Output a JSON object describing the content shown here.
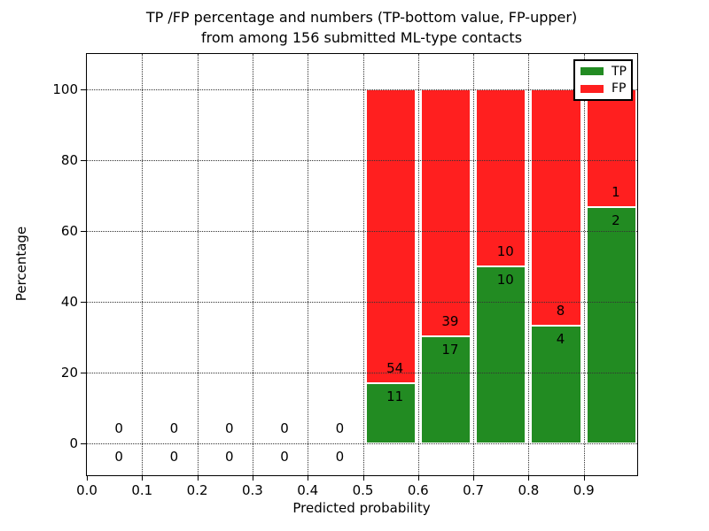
{
  "chart_data": {
    "type": "bar",
    "stacked": true,
    "title_line1": "TP /FP percentage and numbers (TP-bottom value, FP-upper)",
    "title_line2": "from among 156 submitted ML-type contacts",
    "xlabel": "Predicted probability",
    "ylabel": "Percentage",
    "xlim": [
      0.0,
      1.0
    ],
    "ylim": [
      -9,
      110
    ],
    "grid": "dotted",
    "legend_position": "upper right",
    "xticks": [
      "0.0",
      "0.1",
      "0.2",
      "0.3",
      "0.4",
      "0.5",
      "0.6",
      "0.7",
      "0.8",
      "0.9"
    ],
    "yticks": [
      "0",
      "20",
      "40",
      "60",
      "80",
      "100"
    ],
    "legend": [
      {
        "label": "TP",
        "color": "#228b22"
      },
      {
        "label": "FP",
        "color": "#ff1f1f"
      }
    ],
    "bins": [
      {
        "x0": 0.0,
        "x1": 0.1,
        "tp": 0,
        "fp": 0
      },
      {
        "x0": 0.1,
        "x1": 0.2,
        "tp": 0,
        "fp": 0
      },
      {
        "x0": 0.2,
        "x1": 0.3,
        "tp": 0,
        "fp": 0
      },
      {
        "x0": 0.3,
        "x1": 0.4,
        "tp": 0,
        "fp": 0
      },
      {
        "x0": 0.4,
        "x1": 0.5,
        "tp": 0,
        "fp": 0
      },
      {
        "x0": 0.5,
        "x1": 0.6,
        "tp": 11,
        "fp": 54
      },
      {
        "x0": 0.6,
        "x1": 0.7,
        "tp": 17,
        "fp": 39
      },
      {
        "x0": 0.7,
        "x1": 0.8,
        "tp": 10,
        "fp": 10
      },
      {
        "x0": 0.8,
        "x1": 0.9,
        "tp": 4,
        "fp": 8
      },
      {
        "x0": 0.9,
        "x1": 1.0,
        "tp": 2,
        "fp": 1
      }
    ]
  },
  "colors": {
    "tp": "#228b22",
    "fp": "#ff1f1f",
    "background": "#ffffff",
    "axes": "#000000",
    "grid_line": "#333333",
    "text": "#000000"
  }
}
